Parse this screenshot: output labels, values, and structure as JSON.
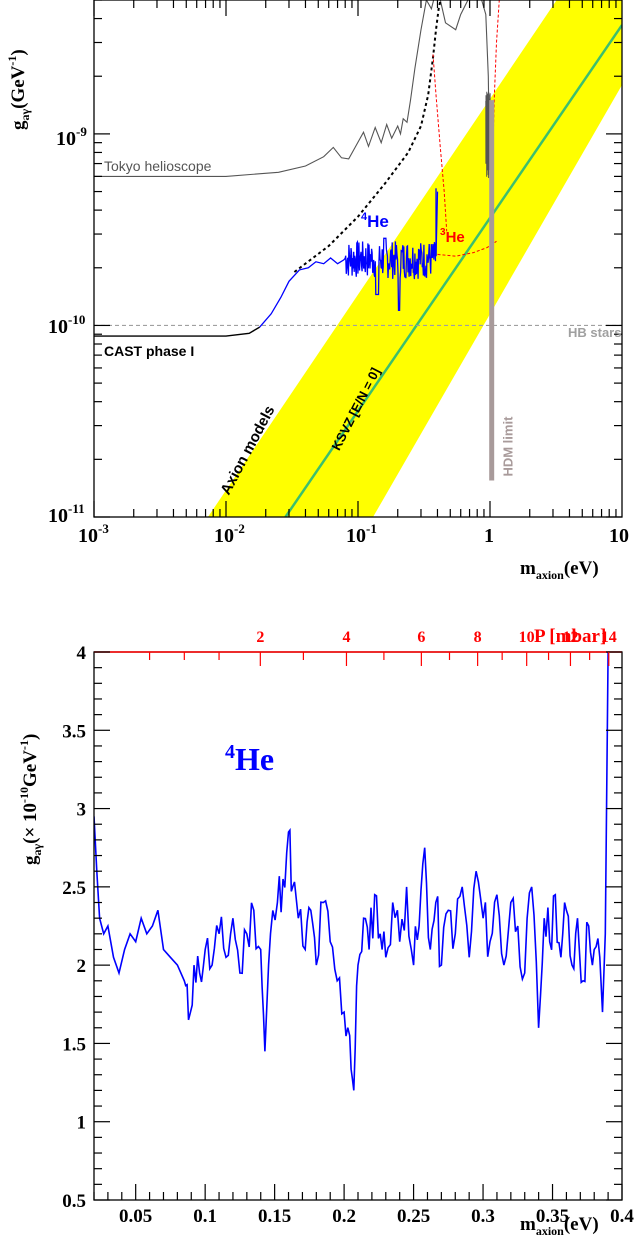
{
  "chart_data": [
    {
      "type": "line",
      "xlabel_main": "m",
      "xlabel_sub": "axion",
      "xlabel_tail": "(eV)",
      "ylabel_main": "g",
      "ylabel_sub": "aγ",
      "ylabel_pre": "(GeV",
      "ylabel_sup": "-1",
      "ylabel_post": ")",
      "x_scale": "log",
      "y_scale": "log",
      "xlim": [
        0.001,
        10
      ],
      "ylim": [
        1e-11,
        5e-09
      ],
      "x_ticks": [
        {
          "value": 0.001,
          "base": "10",
          "exp": "-3"
        },
        {
          "value": 0.01,
          "base": "10",
          "exp": "-2"
        },
        {
          "value": 0.1,
          "base": "10",
          "exp": "-1"
        },
        {
          "value": 1,
          "base": "1",
          "exp": ""
        },
        {
          "value": 10,
          "base": "10",
          "exp": ""
        }
      ],
      "y_ticks": [
        {
          "value": 1e-11,
          "base": "10",
          "exp": "-11"
        },
        {
          "value": 1e-10,
          "base": "10",
          "exp": "-10"
        },
        {
          "value": 1e-09,
          "base": "10",
          "exp": "-9"
        }
      ],
      "band_label": "Axion models",
      "band_color": "#ffff00",
      "ksvz_label": "KSVZ [E/N = 0]",
      "ksvz_color": "#3cbf6e",
      "hb_label": "HB stars",
      "hb_value": 1e-10,
      "hdm_label": "HDM limit",
      "hdm_color": "#a89a9a",
      "tokyo_label": "Tokyo helioscope",
      "cast_label": "CAST phase I",
      "he4_sup": "4",
      "he4_text": "He",
      "he3_sup": "3",
      "he3_text": "He",
      "series": [
        {
          "name": "CAST phase I",
          "color": "#000000",
          "x": [
            0.001,
            0.01,
            0.015,
            0.018
          ],
          "y": [
            8.8e-11,
            8.8e-11,
            9.1e-11,
            9.8e-11
          ]
        },
        {
          "name": "4He",
          "color": "#0000ff",
          "x": [
            0.018,
            0.025,
            0.035,
            0.05,
            0.07,
            0.1,
            0.15,
            0.2,
            0.3,
            0.39
          ],
          "y": [
            9.8e-11,
            1.4e-10,
            1.95e-10,
            2.15e-10,
            2.2e-10,
            2.25e-10,
            2.3e-10,
            2.25e-10,
            2.3e-10,
            2.3e-10
          ]
        },
        {
          "name": "3He",
          "color": "#ff0000",
          "x": [
            0.4,
            0.6,
            0.9,
            1.1
          ],
          "y": [
            2.3e-10,
            2.35e-10,
            2.5e-10,
            2.7e-10
          ]
        }
      ]
    },
    {
      "type": "line",
      "xlabel_main": "m",
      "xlabel_sub": "axion",
      "xlabel_tail": "(eV)",
      "ylabel_main": "g",
      "ylabel_sub": "aγ",
      "ylabel_pre": "(× 10",
      "ylabel_sup": "-10",
      "ylabel_post": "GeV",
      "ylabel_sup2": "-1",
      "ylabel_end": ")",
      "top_axis_label": "P [mbar]",
      "top_axis_color": "#ff0000",
      "xlim": [
        0.02,
        0.4
      ],
      "ylim": [
        0.5,
        4
      ],
      "x_ticks": [
        0.05,
        0.1,
        0.15,
        0.2,
        0.25,
        0.3,
        0.35,
        0.4
      ],
      "y_ticks": [
        0.5,
        1,
        1.5,
        2,
        2.5,
        3,
        3.5,
        4
      ],
      "top_ticks": [
        {
          "label": "2",
          "pos": 0.1397
        },
        {
          "label": "4",
          "pos": 0.2017
        },
        {
          "label": "6",
          "pos": 0.2556
        },
        {
          "label": "8",
          "pos": 0.2961
        },
        {
          "label": "10",
          "pos": 0.3314
        },
        {
          "label": "12",
          "pos": 0.3629
        },
        {
          "label": "14",
          "pos": 0.3905
        }
      ],
      "annotation_sup": "4",
      "annotation_text": "He",
      "annotation_color": "#0000ff",
      "series": [
        {
          "name": "4He",
          "color": "#0000ff",
          "x": [
            0.02,
            0.022,
            0.024,
            0.027,
            0.03,
            0.034,
            0.038,
            0.042,
            0.046,
            0.05,
            0.054,
            0.058,
            0.062,
            0.066,
            0.07,
            0.075,
            0.08,
            0.085,
            0.088,
            0.092,
            0.096,
            0.1,
            0.105,
            0.11,
            0.115,
            0.12,
            0.125,
            0.13,
            0.135,
            0.14,
            0.143,
            0.147,
            0.152,
            0.156,
            0.16,
            0.163,
            0.167,
            0.172,
            0.176,
            0.18,
            0.185,
            0.19,
            0.195,
            0.2,
            0.204,
            0.207,
            0.21,
            0.214,
            0.218,
            0.222,
            0.226,
            0.23,
            0.235,
            0.24,
            0.245,
            0.25,
            0.254,
            0.258,
            0.262,
            0.266,
            0.27,
            0.275,
            0.28,
            0.285,
            0.29,
            0.295,
            0.3,
            0.305,
            0.31,
            0.315,
            0.32,
            0.325,
            0.33,
            0.335,
            0.34,
            0.344,
            0.348,
            0.352,
            0.356,
            0.36,
            0.364,
            0.368,
            0.372,
            0.376,
            0.38,
            0.384,
            0.386,
            0.388,
            0.39
          ],
          "y": [
            2.95,
            2.6,
            2.3,
            2.2,
            2.25,
            2.05,
            1.95,
            2.1,
            2.2,
            2.15,
            2.3,
            2.2,
            2.25,
            2.35,
            2.1,
            2.05,
            2.0,
            1.9,
            1.65,
            2.0,
            1.95,
            2.1,
            2.0,
            2.2,
            2.05,
            2.3,
            1.95,
            2.2,
            2.35,
            2.1,
            1.45,
            2.2,
            2.4,
            2.55,
            2.85,
            2.5,
            2.3,
            2.1,
            2.35,
            2.0,
            2.4,
            2.15,
            1.9,
            1.7,
            1.55,
            1.2,
            2.0,
            2.3,
            2.1,
            2.45,
            2.2,
            2.05,
            2.4,
            2.15,
            2.5,
            2.0,
            2.25,
            2.75,
            2.1,
            2.4,
            2.0,
            2.35,
            2.2,
            2.5,
            2.05,
            2.6,
            2.3,
            2.15,
            2.45,
            2.0,
            2.4,
            2.25,
            1.95,
            2.5,
            1.6,
            2.3,
            2.15,
            2.45,
            2.05,
            2.35,
            2.0,
            2.3,
            1.9,
            2.25,
            2.1,
            2.05,
            1.7,
            2.2,
            4.0
          ]
        }
      ]
    }
  ]
}
